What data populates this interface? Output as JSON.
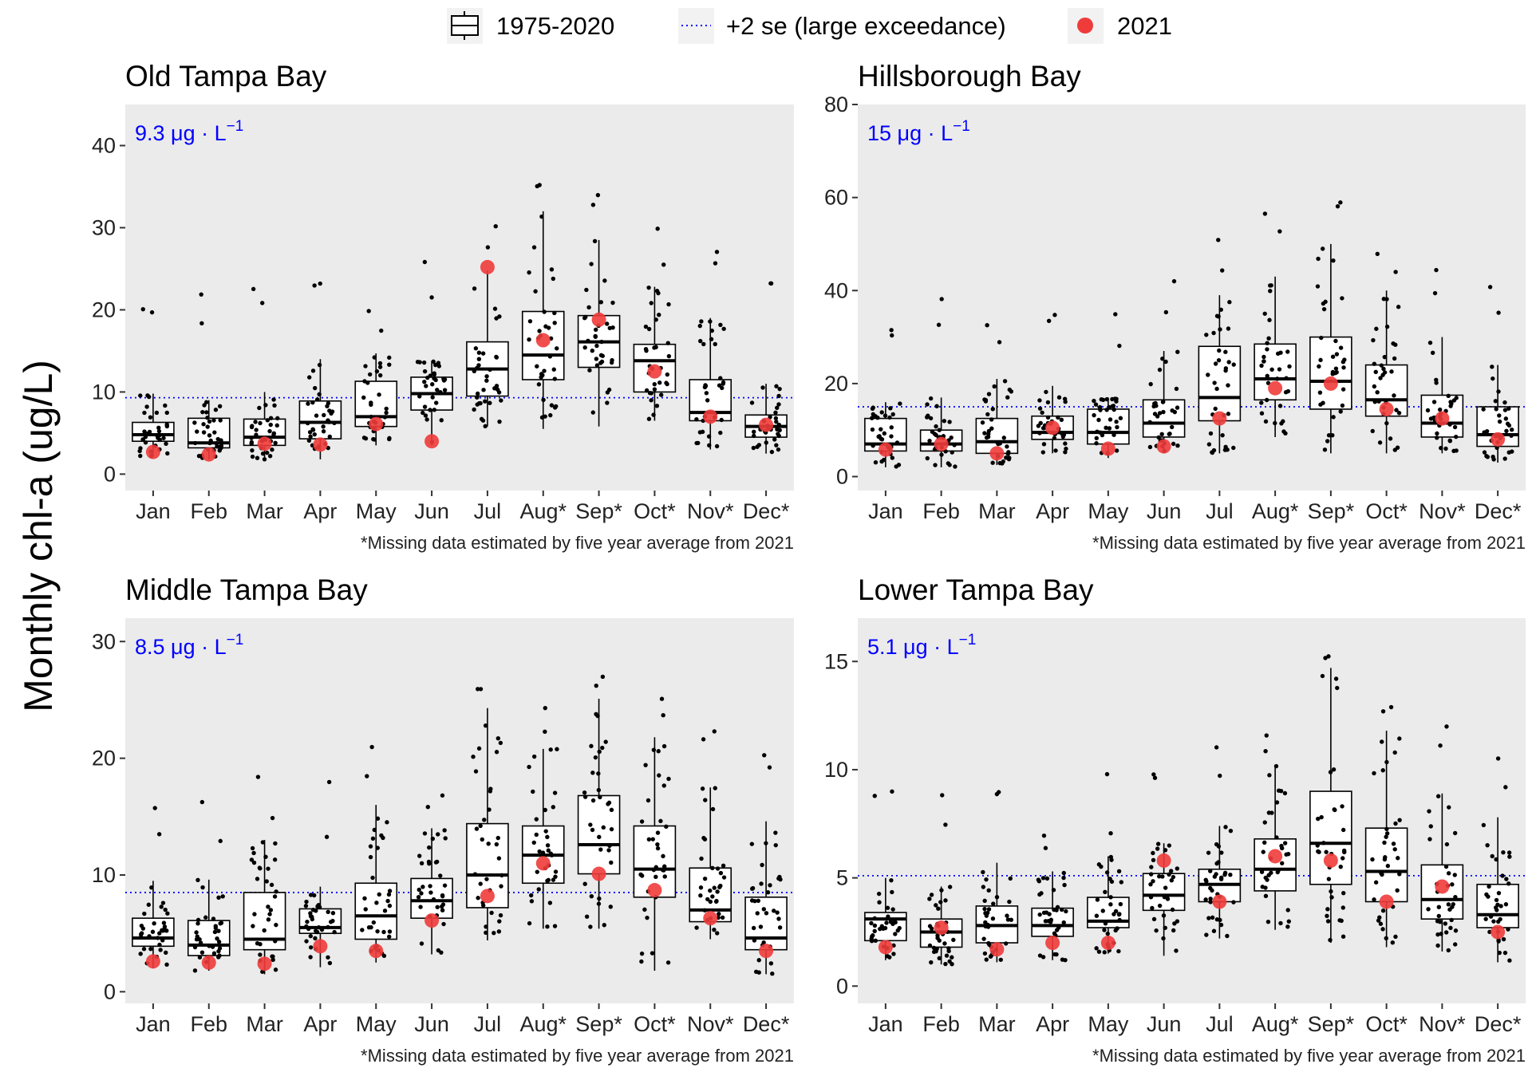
{
  "legend": {
    "items": [
      {
        "label": "1975-2020",
        "symbol": "box"
      },
      {
        "label": "+2 se (large exceedance)",
        "symbol": "dotted-line"
      },
      {
        "label": "2021",
        "symbol": "red-dot"
      }
    ]
  },
  "ylabel": "Monthly chl-a (ug/L)",
  "colors": {
    "panel_bg": "#ebebeb",
    "threshold": "#0000ff",
    "current_year": "#f03b3b",
    "points": "#000000"
  },
  "chart_data": [
    {
      "type": "box",
      "title": "Old Tampa Bay",
      "footnote": "*Missing data estimated by five year average from 2021",
      "threshold": {
        "value": 9.3,
        "label": "9.3",
        "unit": "μg · L",
        "exp": "−1"
      },
      "ylim": [
        -2,
        45
      ],
      "yticks": [
        0,
        10,
        20,
        30,
        40
      ],
      "categories": [
        "Jan",
        "Feb",
        "Mar",
        "Apr",
        "May",
        "Jun",
        "Jul",
        "Aug*",
        "Sep*",
        "Oct*",
        "Nov*",
        "Dec*"
      ],
      "boxes": [
        {
          "q1": 4.0,
          "median": 4.8,
          "q3": 6.3,
          "lo": 2.2,
          "hi": 9.8,
          "y2021": 2.7
        },
        {
          "q1": 3.2,
          "median": 3.8,
          "q3": 6.8,
          "lo": 1.8,
          "hi": 9.0,
          "y2021": 2.4
        },
        {
          "q1": 3.5,
          "median": 4.5,
          "q3": 6.7,
          "lo": 1.8,
          "hi": 10.0,
          "y2021": 3.7
        },
        {
          "q1": 4.3,
          "median": 6.3,
          "q3": 8.9,
          "lo": 1.8,
          "hi": 14.0,
          "y2021": 3.6
        },
        {
          "q1": 5.8,
          "median": 7.0,
          "q3": 11.3,
          "lo": 3.5,
          "hi": 14.7,
          "y2021": 6.1
        },
        {
          "q1": 7.8,
          "median": 9.8,
          "q3": 11.8,
          "lo": 3.5,
          "hi": 13.8,
          "y2021": 4.0
        },
        {
          "q1": 9.5,
          "median": 12.8,
          "q3": 16.1,
          "lo": 5.8,
          "hi": 24.8,
          "y2021": 25.2
        },
        {
          "q1": 11.5,
          "median": 14.5,
          "q3": 19.8,
          "lo": 5.5,
          "hi": 32.0,
          "y2021": 16.3
        },
        {
          "q1": 13.0,
          "median": 16.1,
          "q3": 19.3,
          "lo": 5.8,
          "hi": 28.5,
          "y2021": 18.8
        },
        {
          "q1": 10.0,
          "median": 13.8,
          "q3": 15.8,
          "lo": 6.5,
          "hi": 22.8,
          "y2021": 12.5
        },
        {
          "q1": 6.5,
          "median": 7.5,
          "q3": 11.5,
          "lo": 3.0,
          "hi": 19.0,
          "y2021": 7.0
        },
        {
          "q1": 4.5,
          "median": 5.8,
          "q3": 7.2,
          "lo": 2.5,
          "hi": 11.0,
          "y2021": 6.0
        }
      ]
    },
    {
      "type": "box",
      "title": "Hillsborough Bay",
      "footnote": "*Missing data estimated by five year average from 2021",
      "threshold": {
        "value": 15,
        "label": "15",
        "unit": "μg · L",
        "exp": "−1"
      },
      "ylim": [
        -3,
        80
      ],
      "yticks": [
        0,
        20,
        40,
        60,
        80
      ],
      "categories": [
        "Jan",
        "Feb",
        "Mar",
        "Apr",
        "May",
        "Jun",
        "Jul",
        "Aug*",
        "Sep*",
        "Oct*",
        "Nov*",
        "Dec*"
      ],
      "boxes": [
        {
          "q1": 5.5,
          "median": 7.0,
          "q3": 12.5,
          "lo": 2.0,
          "hi": 16.0,
          "y2021": 5.8
        },
        {
          "q1": 5.5,
          "median": 7.0,
          "q3": 10.0,
          "lo": 2.0,
          "hi": 17.0,
          "y2021": 7.0
        },
        {
          "q1": 5.0,
          "median": 7.5,
          "q3": 12.5,
          "lo": 2.5,
          "hi": 21.0,
          "y2021": 5.0
        },
        {
          "q1": 8.0,
          "median": 9.5,
          "q3": 13.0,
          "lo": 5.0,
          "hi": 19.5,
          "y2021": 10.5
        },
        {
          "q1": 7.0,
          "median": 9.5,
          "q3": 14.5,
          "lo": 4.0,
          "hi": 17.0,
          "y2021": 6.0
        },
        {
          "q1": 8.5,
          "median": 11.5,
          "q3": 16.5,
          "lo": 5.5,
          "hi": 27.0,
          "y2021": 6.5
        },
        {
          "q1": 12.0,
          "median": 17.0,
          "q3": 28.0,
          "lo": 5.0,
          "hi": 39.0,
          "y2021": 12.5
        },
        {
          "q1": 16.5,
          "median": 21.0,
          "q3": 28.5,
          "lo": 8.5,
          "hi": 43.0,
          "y2021": 19.0
        },
        {
          "q1": 14.5,
          "median": 20.5,
          "q3": 30.0,
          "lo": 5.0,
          "hi": 50.0,
          "y2021": 20.0
        },
        {
          "q1": 13.0,
          "median": 16.5,
          "q3": 24.0,
          "lo": 5.0,
          "hi": 40.0,
          "y2021": 14.5
        },
        {
          "q1": 8.5,
          "median": 11.5,
          "q3": 17.5,
          "lo": 5.0,
          "hi": 30.0,
          "y2021": 12.5
        },
        {
          "q1": 6.5,
          "median": 9.0,
          "q3": 15.0,
          "lo": 3.0,
          "hi": 24.0,
          "y2021": 8.0
        }
      ]
    },
    {
      "type": "box",
      "title": "Middle Tampa Bay",
      "footnote": "*Missing data estimated by five year average from 2021",
      "threshold": {
        "value": 8.5,
        "label": "8.5",
        "unit": "μg · L",
        "exp": "−1"
      },
      "ylim": [
        -1,
        32
      ],
      "yticks": [
        0,
        10,
        20,
        30
      ],
      "categories": [
        "Jan",
        "Feb",
        "Mar",
        "Apr",
        "May",
        "Jun",
        "Jul",
        "Aug*",
        "Sep*",
        "Oct*",
        "Nov*",
        "Dec*"
      ],
      "boxes": [
        {
          "q1": 3.9,
          "median": 4.6,
          "q3": 6.3,
          "lo": 2.0,
          "hi": 9.5,
          "y2021": 2.6
        },
        {
          "q1": 3.1,
          "median": 4.0,
          "q3": 6.1,
          "lo": 1.8,
          "hi": 9.6,
          "y2021": 2.5
        },
        {
          "q1": 3.6,
          "median": 4.5,
          "q3": 8.5,
          "lo": 1.5,
          "hi": 13.0,
          "y2021": 2.4
        },
        {
          "q1": 5.0,
          "median": 5.5,
          "q3": 7.1,
          "lo": 2.1,
          "hi": 9.0,
          "y2021": 3.9
        },
        {
          "q1": 4.5,
          "median": 6.5,
          "q3": 9.3,
          "lo": 2.5,
          "hi": 16.0,
          "y2021": 3.5
        },
        {
          "q1": 6.3,
          "median": 7.8,
          "q3": 9.7,
          "lo": 3.2,
          "hi": 14.0,
          "y2021": 6.1
        },
        {
          "q1": 7.2,
          "median": 10.0,
          "q3": 14.4,
          "lo": 4.4,
          "hi": 24.3,
          "y2021": 8.2
        },
        {
          "q1": 9.3,
          "median": 11.7,
          "q3": 14.2,
          "lo": 5.4,
          "hi": 20.8,
          "y2021": 11.0
        },
        {
          "q1": 10.1,
          "median": 12.6,
          "q3": 16.8,
          "lo": 5.4,
          "hi": 25.1,
          "y2021": 10.1
        },
        {
          "q1": 8.1,
          "median": 10.5,
          "q3": 14.2,
          "lo": 1.8,
          "hi": 21.8,
          "y2021": 8.7
        },
        {
          "q1": 6.0,
          "median": 7.0,
          "q3": 10.6,
          "lo": 4.5,
          "hi": 17.5,
          "y2021": 6.3
        },
        {
          "q1": 3.6,
          "median": 4.6,
          "q3": 8.1,
          "lo": 1.5,
          "hi": 14.6,
          "y2021": 3.5
        }
      ]
    },
    {
      "type": "box",
      "title": "Lower Tampa Bay",
      "footnote": "*Missing data estimated by five year average from 2021",
      "threshold": {
        "value": 5.1,
        "label": "5.1",
        "unit": "μg · L",
        "exp": "−1"
      },
      "ylim": [
        -0.8,
        17
      ],
      "yticks": [
        0,
        5,
        10,
        15
      ],
      "categories": [
        "Jan",
        "Feb",
        "Mar",
        "Apr",
        "May",
        "Jun",
        "Jul",
        "Aug*",
        "Sep*",
        "Oct*",
        "Nov*",
        "Dec*"
      ],
      "boxes": [
        {
          "q1": 2.1,
          "median": 3.1,
          "q3": 3.4,
          "lo": 1.2,
          "hi": 5.0,
          "y2021": 1.8
        },
        {
          "q1": 1.8,
          "median": 2.5,
          "q3": 3.1,
          "lo": 1.0,
          "hi": 4.6,
          "y2021": 2.7
        },
        {
          "q1": 2.0,
          "median": 2.8,
          "q3": 3.7,
          "lo": 1.1,
          "hi": 5.7,
          "y2021": 1.7
        },
        {
          "q1": 2.3,
          "median": 2.8,
          "q3": 3.6,
          "lo": 1.2,
          "hi": 5.3,
          "y2021": 2.0
        },
        {
          "q1": 2.7,
          "median": 3.0,
          "q3": 4.1,
          "lo": 1.5,
          "hi": 6.0,
          "y2021": 2.0
        },
        {
          "q1": 3.5,
          "median": 4.2,
          "q3": 5.2,
          "lo": 1.4,
          "hi": 6.6,
          "y2021": 5.8
        },
        {
          "q1": 3.9,
          "median": 4.7,
          "q3": 5.4,
          "lo": 2.2,
          "hi": 7.4,
          "y2021": 3.9
        },
        {
          "q1": 4.4,
          "median": 5.4,
          "q3": 6.8,
          "lo": 2.6,
          "hi": 10.2,
          "y2021": 6.0
        },
        {
          "q1": 4.7,
          "median": 6.6,
          "q3": 9.0,
          "lo": 2.0,
          "hi": 14.7,
          "y2021": 5.8
        },
        {
          "q1": 3.9,
          "median": 5.3,
          "q3": 7.3,
          "lo": 1.8,
          "hi": 11.8,
          "y2021": 3.9
        },
        {
          "q1": 3.1,
          "median": 4.0,
          "q3": 5.6,
          "lo": 1.6,
          "hi": 8.9,
          "y2021": 4.6
        },
        {
          "q1": 2.7,
          "median": 3.3,
          "q3": 4.7,
          "lo": 1.1,
          "hi": 7.8,
          "y2021": 2.5
        }
      ]
    }
  ]
}
